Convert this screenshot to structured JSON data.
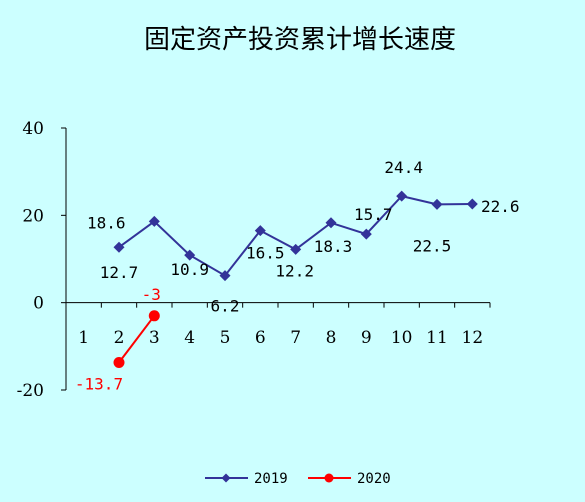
{
  "chart_data": {
    "type": "line",
    "title": "固定资产投资累计增长速度",
    "xlabel": "",
    "ylabel": "",
    "categories": [
      "1",
      "2",
      "3",
      "4",
      "5",
      "6",
      "7",
      "8",
      "9",
      "10",
      "11",
      "12"
    ],
    "y_ticks": [
      "40",
      "20",
      "0",
      "-20"
    ],
    "ylim": [
      -20,
      40
    ],
    "grid": false,
    "legend_position": "bottom",
    "series": [
      {
        "name": "2019",
        "color": "#333399",
        "marker": "diamond",
        "values": [
          null,
          12.7,
          18.6,
          10.9,
          6.2,
          16.5,
          12.2,
          18.3,
          15.7,
          24.4,
          22.5,
          22.6
        ],
        "labels": [
          "",
          "12.7",
          "18.6",
          "10.9",
          "6.2",
          "16.5",
          "12.2",
          "18.3",
          "15.7",
          "24.4",
          "22.5",
          "22.6"
        ]
      },
      {
        "name": "2020",
        "color": "#ff0000",
        "marker": "circle",
        "values": [
          null,
          -13.7,
          -3,
          null,
          null,
          null,
          null,
          null,
          null,
          null,
          null,
          null
        ],
        "labels": [
          "",
          "-13.7",
          "-3",
          "",
          "",
          "",
          "",
          "",
          "",
          "",
          "",
          ""
        ]
      }
    ]
  }
}
